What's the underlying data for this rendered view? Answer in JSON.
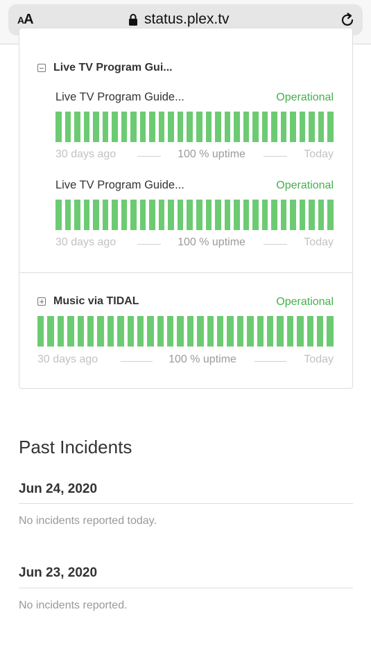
{
  "browser": {
    "text_size_label_small": "A",
    "text_size_label_large": "A",
    "url": "status.plex.tv"
  },
  "components": {
    "group_live_tv": {
      "title": "Live TV Program Gui...",
      "items": [
        {
          "name": "Live TV Program Guide...",
          "status": "Operational",
          "footer_left": "30 days ago",
          "footer_center": "100 % uptime",
          "footer_right": "Today",
          "uptime_fraction": 1.0,
          "days": 30
        },
        {
          "name": "Live TV Program Guide...",
          "status": "Operational",
          "footer_left": "30 days ago",
          "footer_center": "100 % uptime",
          "footer_right": "Today",
          "uptime_fraction": 1.0,
          "days": 30
        }
      ]
    },
    "music_tidal": {
      "title": "Music via TIDAL",
      "status": "Operational",
      "footer_left": "30 days ago",
      "footer_center": "100 % uptime",
      "footer_right": "Today",
      "uptime_fraction": 1.0,
      "days": 30
    }
  },
  "past_incidents": {
    "title": "Past Incidents",
    "days": [
      {
        "date": "Jun 24, 2020",
        "note": "No incidents reported today."
      },
      {
        "date": "Jun 23, 2020",
        "note": "No incidents reported."
      }
    ]
  },
  "colors": {
    "operational": "#43b04a",
    "uptime_bar": "#6ccb72"
  },
  "icons": {
    "lock": "lock-icon",
    "reload": "reload-icon",
    "collapse": "minus-square-icon",
    "expand": "plus-square-icon"
  }
}
